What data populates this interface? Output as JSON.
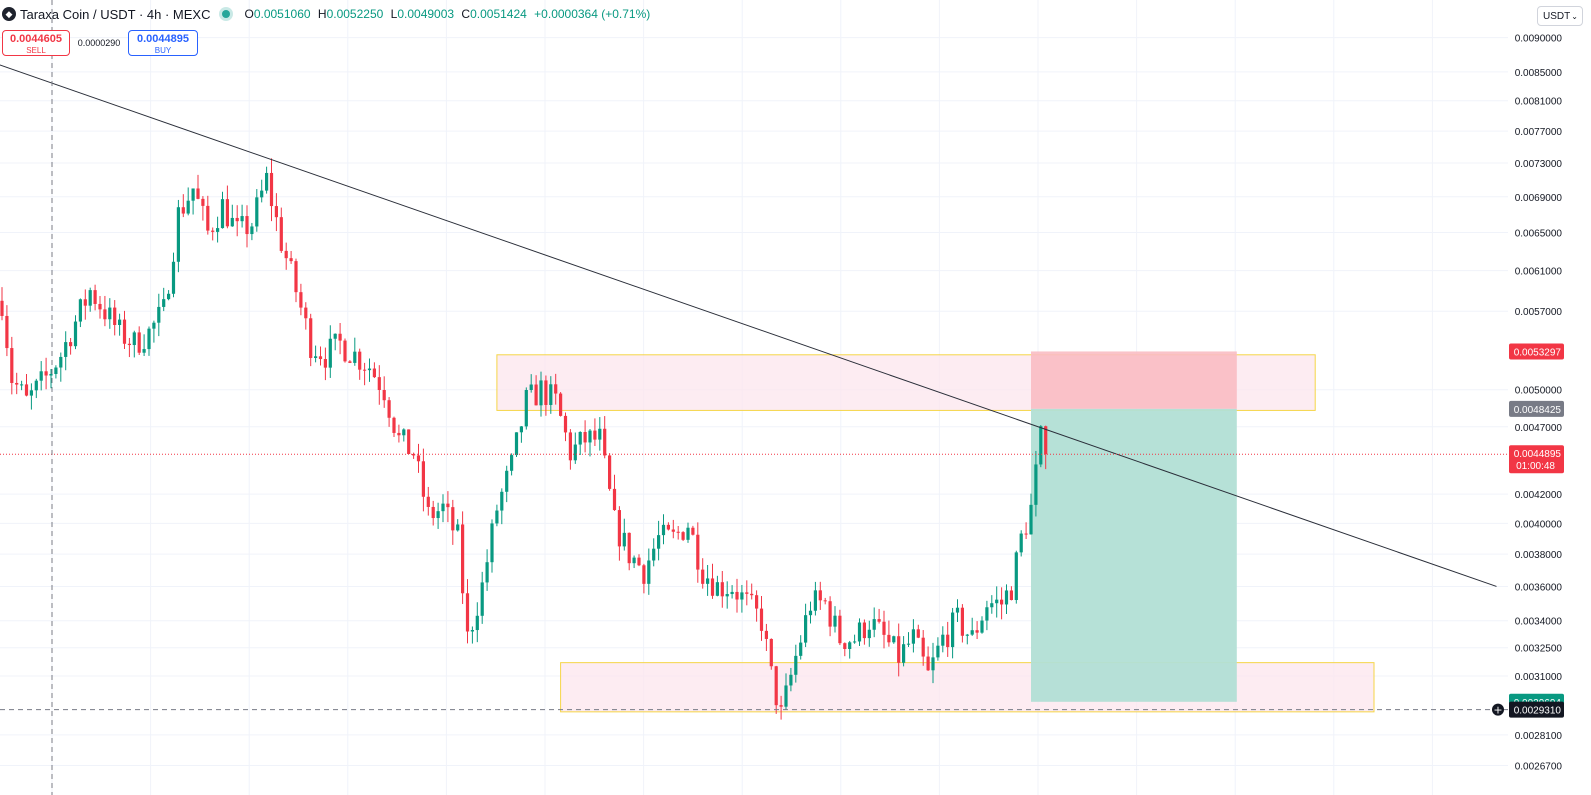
{
  "header": {
    "symbol": "Taraxa Coin / USDT · 4h · MEXC",
    "ohlc": {
      "o_label": "O",
      "o": "0.0051060",
      "h_label": "H",
      "h": "0.0052250",
      "l_label": "L",
      "l": "0.0049003",
      "c_label": "C",
      "c": "0.0051424",
      "change": "+0.0000364 (+0.71%)"
    },
    "icons": {
      "logo": "taraxa-logo-icon",
      "status": "live-status-icon"
    }
  },
  "trade": {
    "sell_price": "0.0044605",
    "sell_label": "SELL",
    "spread": "0.0000290",
    "buy_price": "0.0044895",
    "buy_label": "BUY"
  },
  "currency": {
    "label": "USDT",
    "icon": "chevron-down-icon"
  },
  "colors": {
    "up": "#089981",
    "down": "#f23645",
    "grid": "#f0f3fa",
    "zone_fill": "#fce4ec",
    "zone_stroke": "#f5d547",
    "target": "#b2dfd5",
    "stop": "#f9bcc3"
  },
  "chart_data": {
    "type": "candlestick",
    "instrument": "Taraxa Coin / USDT",
    "timeframe": "4h",
    "y_scale": "log",
    "ylim": [
      0.00255,
      0.0093
    ],
    "price_ticks": [
      "0.0090000",
      "0.0085000",
      "0.0081000",
      "0.0077000",
      "0.0073000",
      "0.0069000",
      "0.0065000",
      "0.0061000",
      "0.0057000",
      "0.0050000",
      "0.0047000",
      "0.0042000",
      "0.0040000",
      "0.0038000",
      "0.0036000",
      "0.0034000",
      "0.0032500",
      "0.0031000",
      "0.0028100",
      "0.0026700"
    ],
    "price_labels": [
      {
        "name": "stop-price-label",
        "value": "0.0053297",
        "color": "#f23645"
      },
      {
        "name": "entry-price-label",
        "value": "0.0048425",
        "color": "#787b86"
      },
      {
        "name": "last-price-label",
        "value": "0.0044895",
        "countdown": "01:00:48",
        "color": "#f23645"
      },
      {
        "name": "target-price-label",
        "value": "0.0029694",
        "color": "#089981"
      },
      {
        "name": "crosshair-price-label",
        "value": "0.0029310",
        "color": "#131722"
      }
    ],
    "anchors": [
      [
        0,
        0.0058
      ],
      [
        2,
        0.0051
      ],
      [
        5,
        0.0049
      ],
      [
        9,
        0.0051
      ],
      [
        12,
        0.0053
      ],
      [
        15,
        0.0056
      ],
      [
        18,
        0.0059
      ],
      [
        21,
        0.0057
      ],
      [
        24,
        0.0055
      ],
      [
        27,
        0.0054
      ],
      [
        30,
        0.0055
      ],
      [
        33,
        0.0057
      ],
      [
        36,
        0.0067
      ],
      [
        39,
        0.007
      ],
      [
        42,
        0.0065
      ],
      [
        45,
        0.0068
      ],
      [
        48,
        0.0065
      ],
      [
        51,
        0.0066
      ],
      [
        54,
        0.0071
      ],
      [
        57,
        0.0064
      ],
      [
        60,
        0.0059
      ],
      [
        63,
        0.0054
      ],
      [
        66,
        0.0053
      ],
      [
        69,
        0.0054
      ],
      [
        72,
        0.0053
      ],
      [
        75,
        0.0052
      ],
      [
        78,
        0.005
      ],
      [
        81,
        0.0046
      ],
      [
        84,
        0.0045
      ],
      [
        87,
        0.00405
      ],
      [
        90,
        0.0041
      ],
      [
        93,
        0.0039
      ],
      [
        95,
        0.0033
      ],
      [
        98,
        0.0036
      ],
      [
        101,
        0.0041
      ],
      [
        104,
        0.0044
      ],
      [
        107,
        0.0049
      ],
      [
        110,
        0.005
      ],
      [
        113,
        0.0049
      ],
      [
        116,
        0.0045
      ],
      [
        119,
        0.0046
      ],
      [
        122,
        0.0046
      ],
      [
        125,
        0.004
      ],
      [
        128,
        0.0038
      ],
      [
        131,
        0.0037
      ],
      [
        134,
        0.0039
      ],
      [
        137,
        0.0039
      ],
      [
        140,
        0.004
      ],
      [
        143,
        0.0037
      ],
      [
        146,
        0.0036
      ],
      [
        149,
        0.0036
      ],
      [
        152,
        0.0035
      ],
      [
        155,
        0.0034
      ],
      [
        157,
        0.0031
      ],
      [
        159,
        0.0029
      ],
      [
        162,
        0.0032
      ],
      [
        165,
        0.0035
      ],
      [
        168,
        0.0035
      ],
      [
        171,
        0.0033
      ],
      [
        174,
        0.0033
      ],
      [
        177,
        0.0034
      ],
      [
        180,
        0.0033
      ],
      [
        183,
        0.0032
      ],
      [
        186,
        0.0033
      ],
      [
        189,
        0.0031
      ],
      [
        192,
        0.0033
      ],
      [
        195,
        0.0034
      ],
      [
        198,
        0.0033
      ],
      [
        201,
        0.0035
      ],
      [
        204,
        0.0035
      ],
      [
        206,
        0.0036
      ],
      [
        208,
        0.0039
      ],
      [
        210,
        0.0041
      ],
      [
        212,
        0.0046
      ],
      [
        213,
        0.0045
      ]
    ],
    "trendline": [
      [
        -0.5,
        0.0086
      ],
      [
        305,
        0.0036
      ]
    ],
    "resistance_zone": {
      "x": [
        101,
        268
      ],
      "y": [
        0.00483,
        0.0053
      ]
    },
    "support_zone": {
      "x": [
        114,
        280
      ],
      "y": [
        0.00292,
        0.00317
      ]
    },
    "position": {
      "type": "long",
      "x": [
        210,
        252
      ],
      "entry": 0.0048425,
      "stop": 0.0053297,
      "target": 0.0029694
    },
    "last_price": 0.0044895,
    "crosshair_price": 0.002931
  }
}
